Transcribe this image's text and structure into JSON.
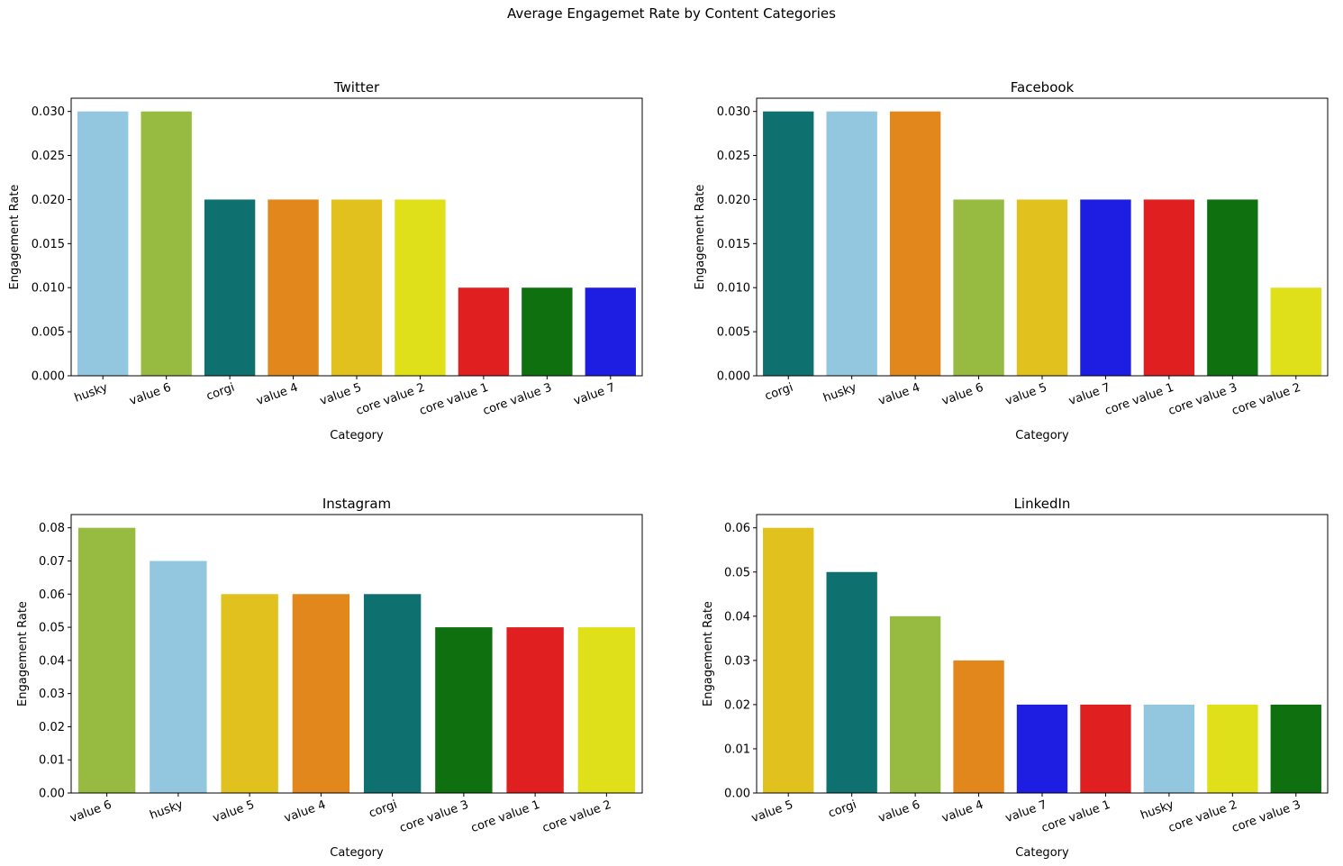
{
  "suptitle": "Average Engagemet Rate by Content Categories",
  "colors": {
    "husky": "#92c7df",
    "value 6": "#97bb41",
    "corgi": "#0f716f",
    "value 4": "#e2871c",
    "value 5": "#e0c11e",
    "core value 2": "#e0e01a",
    "core value 1": "#e02020",
    "core value 3": "#0f7010",
    "value 7": "#1e1ee2"
  },
  "chart_data": [
    {
      "type": "bar",
      "title": "Twitter",
      "xlabel": "Category",
      "ylabel": "Engagement Rate",
      "categories": [
        "husky",
        "value 6",
        "corgi",
        "value 4",
        "value 5",
        "core value 2",
        "core value 1",
        "core value 3",
        "value 7"
      ],
      "values": [
        0.03,
        0.03,
        0.02,
        0.02,
        0.02,
        0.02,
        0.01,
        0.01,
        0.01
      ],
      "ylim": [
        0,
        0.0315
      ],
      "yticks": [
        "0.000",
        "0.005",
        "0.010",
        "0.015",
        "0.020",
        "0.025",
        "0.030"
      ],
      "ytick_values": [
        0,
        0.005,
        0.01,
        0.015,
        0.02,
        0.025,
        0.03
      ],
      "grid": false
    },
    {
      "type": "bar",
      "title": "Facebook",
      "xlabel": "Category",
      "ylabel": "Engagement Rate",
      "categories": [
        "corgi",
        "husky",
        "value 4",
        "value 6",
        "value 5",
        "value 7",
        "core value 1",
        "core value 3",
        "core value 2"
      ],
      "values": [
        0.03,
        0.03,
        0.03,
        0.02,
        0.02,
        0.02,
        0.02,
        0.02,
        0.01
      ],
      "ylim": [
        0,
        0.0315
      ],
      "yticks": [
        "0.000",
        "0.005",
        "0.010",
        "0.015",
        "0.020",
        "0.025",
        "0.030"
      ],
      "ytick_values": [
        0,
        0.005,
        0.01,
        0.015,
        0.02,
        0.025,
        0.03
      ],
      "grid": false
    },
    {
      "type": "bar",
      "title": "Instagram",
      "xlabel": "Category",
      "ylabel": "Engagement Rate",
      "categories": [
        "value 6",
        "husky",
        "value 5",
        "value 4",
        "corgi",
        "core value 3",
        "core value 1",
        "core value 2"
      ],
      "values": [
        0.08,
        0.07,
        0.06,
        0.06,
        0.06,
        0.05,
        0.05,
        0.05
      ],
      "ylim": [
        0,
        0.084
      ],
      "yticks": [
        "0.00",
        "0.01",
        "0.02",
        "0.03",
        "0.04",
        "0.05",
        "0.06",
        "0.07",
        "0.08"
      ],
      "ytick_values": [
        0,
        0.01,
        0.02,
        0.03,
        0.04,
        0.05,
        0.06,
        0.07,
        0.08
      ],
      "grid": false
    },
    {
      "type": "bar",
      "title": "LinkedIn",
      "xlabel": "Category",
      "ylabel": "Engagement Rate",
      "categories": [
        "value 5",
        "corgi",
        "value 6",
        "value 4",
        "value 7",
        "core value 1",
        "husky",
        "core value 2",
        "core value 3"
      ],
      "values": [
        0.06,
        0.05,
        0.04,
        0.03,
        0.02,
        0.02,
        0.02,
        0.02,
        0.02
      ],
      "ylim": [
        0,
        0.063
      ],
      "yticks": [
        "0.00",
        "0.01",
        "0.02",
        "0.03",
        "0.04",
        "0.05",
        "0.06"
      ],
      "ytick_values": [
        0,
        0.01,
        0.02,
        0.03,
        0.04,
        0.05,
        0.06
      ],
      "grid": false
    }
  ]
}
